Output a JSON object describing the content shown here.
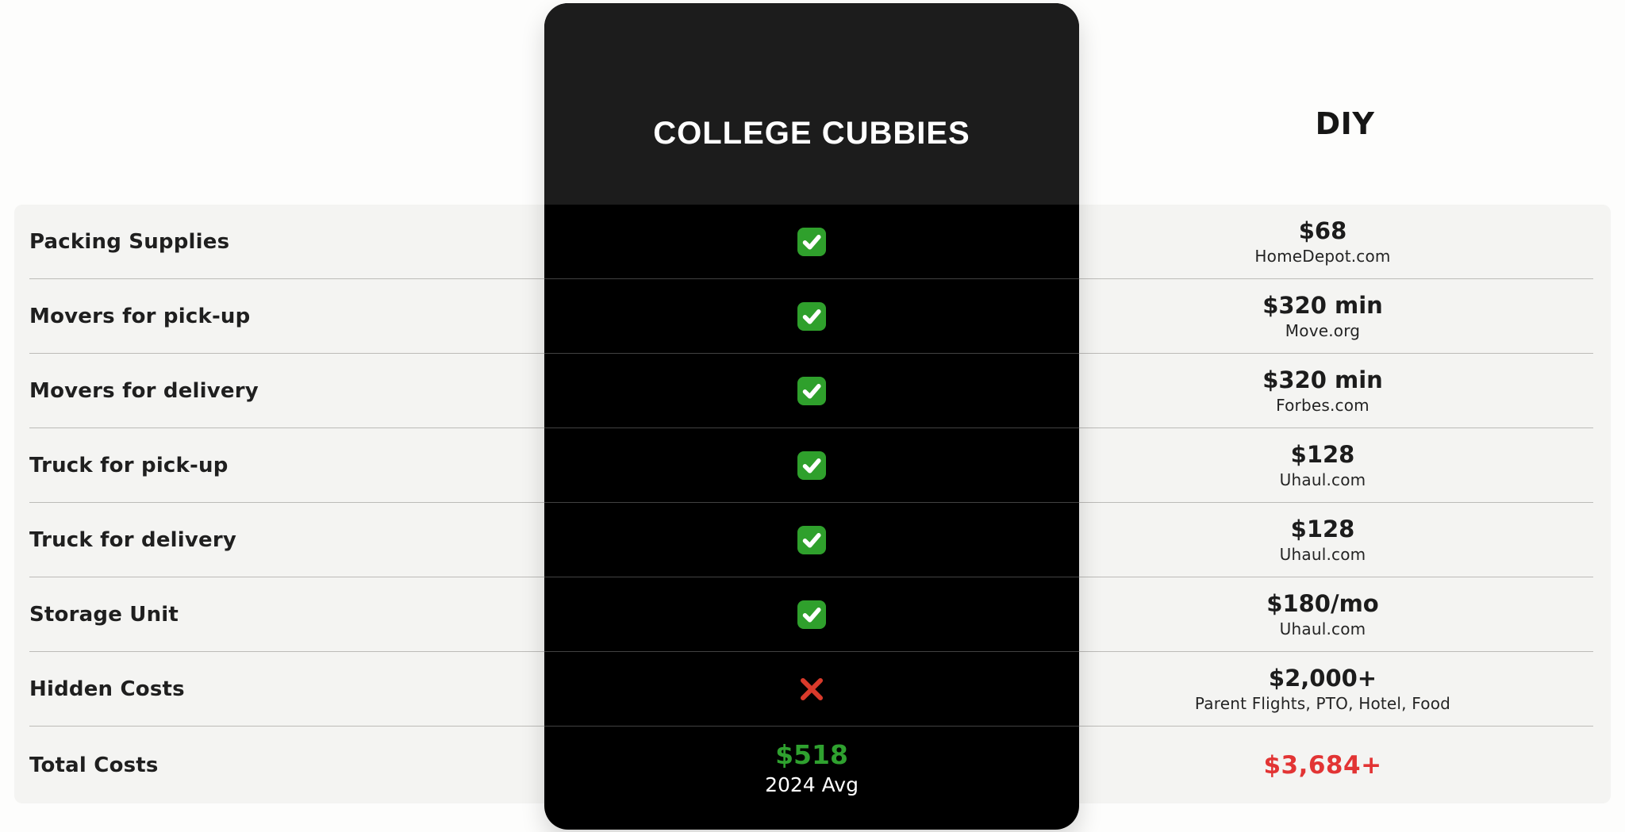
{
  "comparison": {
    "product_column": {
      "title": "COLLEGE CUBBIES"
    },
    "diy_column": {
      "title": "DIY"
    },
    "rows": [
      {
        "label": "Packing Supplies",
        "product": "check",
        "diy_value": "$68",
        "diy_source": "HomeDepot.com"
      },
      {
        "label": "Movers for pick-up",
        "product": "check",
        "diy_value": "$320 min",
        "diy_source": "Move.org"
      },
      {
        "label": "Movers for delivery",
        "product": "check",
        "diy_value": "$320 min",
        "diy_source": "Forbes.com"
      },
      {
        "label": "Truck for pick-up",
        "product": "check",
        "diy_value": "$128",
        "diy_source": "Uhaul.com"
      },
      {
        "label": "Truck for delivery",
        "product": "check",
        "diy_value": "$128",
        "diy_source": "Uhaul.com"
      },
      {
        "label": "Storage Unit",
        "product": "check",
        "diy_value": "$180/mo",
        "diy_source": "Uhaul.com"
      },
      {
        "label": "Hidden Costs",
        "product": "cross",
        "diy_value": "$2,000+",
        "diy_source": "Parent Flights, PTO, Hotel, Food"
      }
    ],
    "total_row": {
      "label": "Total Costs",
      "product_value": "$518",
      "product_note": "2024 Avg",
      "diy_value": "$3,684+"
    }
  },
  "colors": {
    "check_green": "#2fa02c",
    "total_green": "#2fa12f",
    "cross_red": "#d93a2b",
    "total_red": "#e23434",
    "band_bg": "#f4f4f2",
    "card_bg": "#000000",
    "card_header_bg": "#1c1c1c",
    "divider_light": "#bcbbb8",
    "divider_dark": "#424242"
  },
  "chart_data": {
    "type": "table",
    "columns": [
      "",
      "COLLEGE CUBBIES",
      "DIY"
    ],
    "rows": [
      [
        "Packing Supplies",
        "included (check)",
        "$68 — HomeDepot.com"
      ],
      [
        "Movers for pick-up",
        "included (check)",
        "$320 min — Move.org"
      ],
      [
        "Movers for delivery",
        "included (check)",
        "$320 min — Forbes.com"
      ],
      [
        "Truck for pick-up",
        "included (check)",
        "$128 — Uhaul.com"
      ],
      [
        "Truck for delivery",
        "included (check)",
        "$128 — Uhaul.com"
      ],
      [
        "Storage Unit",
        "included (check)",
        "$180/mo — Uhaul.com"
      ],
      [
        "Hidden Costs",
        "none (cross)",
        "$2,000+ — Parent Flights, PTO, Hotel, Food"
      ],
      [
        "Total Costs",
        "$518 (2024 Avg)",
        "$3,684+"
      ]
    ],
    "legend_position": "none",
    "grid": "row-dividers"
  }
}
